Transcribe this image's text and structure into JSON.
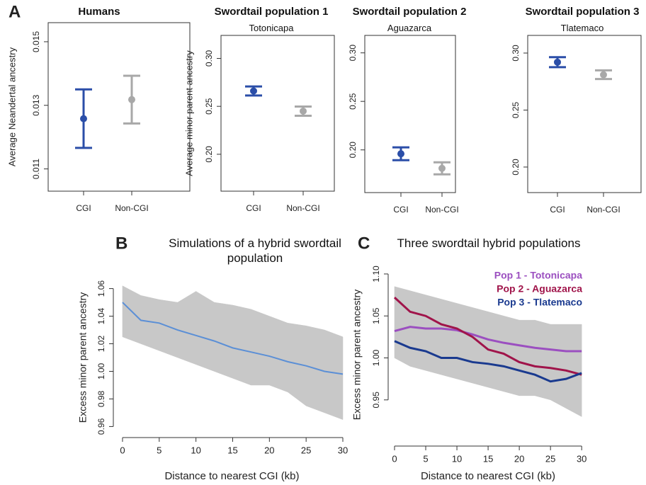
{
  "chart_data": [
    {
      "type": "errorbar",
      "panel_label": "A",
      "title": "Humans",
      "ylabel": "Average Neandertal ancestry",
      "categories": [
        "CGI",
        "Non-CGI"
      ],
      "values": [
        0.01258,
        0.01318
      ],
      "errors": [
        0.00092,
        0.00075
      ],
      "colors": [
        "#2b4ea8",
        "#a8a8a8"
      ],
      "ylim": [
        0.0103,
        0.0156
      ],
      "yticks": [
        0.011,
        0.013,
        0.015
      ]
    },
    {
      "type": "errorbar",
      "title": "Swordtail population 1",
      "subtitle": "Totonicapa",
      "ylabel": "Average minor parent ancestry",
      "categories": [
        "CGI",
        "Non-CGI"
      ],
      "values": [
        0.266,
        0.245
      ],
      "errors": [
        0.0047,
        0.0048
      ],
      "colors": [
        "#2b4ea8",
        "#a8a8a8"
      ],
      "ylim": [
        0.1615,
        0.324
      ],
      "yticks": [
        {
          "value": 0.2,
          "label": "0.20"
        },
        0.25,
        {
          "value": 0.3,
          "label": "0.30"
        }
      ]
    },
    {
      "type": "errorbar",
      "title": "Swordtail population 2",
      "subtitle": "Aguazarca",
      "categories": [
        "CGI",
        "Non-CGI"
      ],
      "values": [
        0.196,
        0.181
      ],
      "errors": [
        0.0066,
        0.0062
      ],
      "colors": [
        "#2b4ea8",
        "#a8a8a8"
      ],
      "ylim": [
        0.156,
        0.318
      ],
      "yticks": [
        {
          "value": 0.2,
          "label": "0.20"
        },
        0.25,
        {
          "value": 0.3,
          "label": "0.30"
        }
      ]
    },
    {
      "type": "errorbar",
      "title": "Swordtail population 3",
      "subtitle": "Tlatemaco",
      "categories": [
        "CGI",
        "Non-CGI"
      ],
      "values": [
        0.292,
        0.281
      ],
      "errors": [
        0.0044,
        0.0038
      ],
      "colors": [
        "#2b4ea8",
        "#a8a8a8"
      ],
      "ylim": [
        0.1776,
        0.3155
      ],
      "yticks": [
        {
          "value": 0.2,
          "label": "0.20"
        },
        0.25,
        {
          "value": 0.3,
          "label": "0.30"
        }
      ]
    },
    {
      "type": "line",
      "panel_label": "B",
      "title": "Simulations of a hybrid swordtail population",
      "xlabel": "Distance to nearest CGI (kb)",
      "ylabel": "Excess minor parent ancestry",
      "x": [
        0,
        2.5,
        5,
        7.5,
        10,
        12.5,
        15,
        17.5,
        20,
        22.5,
        25,
        27.5,
        30
      ],
      "band": {
        "color": "#c8c8c8",
        "lower": [
          1.025,
          1.02,
          1.015,
          1.01,
          1.005,
          1.0,
          0.995,
          0.99,
          0.99,
          0.985,
          0.975,
          0.97,
          0.965
        ],
        "upper": [
          1.062,
          1.055,
          1.052,
          1.05,
          1.058,
          1.05,
          1.048,
          1.045,
          1.04,
          1.035,
          1.033,
          1.03,
          1.025
        ]
      },
      "series": [
        {
          "color": "#5b8fd6",
          "values": [
            1.05,
            1.037,
            1.035,
            1.03,
            1.026,
            1.022,
            1.017,
            1.014,
            1.011,
            1.007,
            1.004,
            1.0,
            0.998
          ]
        }
      ],
      "xlim": [
        -1.25,
        31.06
      ],
      "xticks": [
        0,
        5,
        10,
        15,
        20,
        25,
        30
      ],
      "ylim": [
        0.952,
        1.068
      ],
      "yticks": [
        0.96,
        0.98,
        {
          "value": 1.0,
          "label": "1.00"
        },
        1.02,
        1.04,
        1.06
      ]
    },
    {
      "type": "line",
      "panel_label": "C",
      "title": "Three swordtail hybrid populations",
      "xlabel": "Distance to nearest CGI (kb)",
      "ylabel": "Excess minor parent ancestry",
      "x": [
        0,
        2.5,
        5,
        7.5,
        10,
        12.5,
        15,
        17.5,
        20,
        22.5,
        25,
        27.5,
        30
      ],
      "band": {
        "color": "#c8c8c8",
        "lower": [
          1.0,
          0.99,
          0.985,
          0.98,
          0.975,
          0.97,
          0.965,
          0.96,
          0.955,
          0.955,
          0.95,
          0.94,
          0.93
        ],
        "upper": [
          1.085,
          1.08,
          1.075,
          1.07,
          1.065,
          1.06,
          1.055,
          1.05,
          1.045,
          1.045,
          1.04,
          1.04,
          1.04
        ]
      },
      "series": [
        {
          "name": "Pop 1 - Totonicapa",
          "color": "#9b4fc0",
          "values": [
            1.032,
            1.037,
            1.035,
            1.035,
            1.033,
            1.028,
            1.022,
            1.018,
            1.015,
            1.012,
            1.01,
            1.008,
            1.008
          ]
        },
        {
          "name": "Pop 2 - Aguazarca",
          "color": "#a0144a",
          "values": [
            1.072,
            1.055,
            1.05,
            1.04,
            1.035,
            1.025,
            1.01,
            1.005,
            0.995,
            0.99,
            0.988,
            0.985,
            0.98
          ]
        },
        {
          "name": "Pop 3 - Tlatemaco",
          "color": "#1a3a8f",
          "values": [
            1.02,
            1.012,
            1.008,
            1.0,
            1.0,
            0.995,
            0.993,
            0.99,
            0.985,
            0.98,
            0.972,
            0.975,
            0.982
          ]
        }
      ],
      "legend": "top-right",
      "xlim": [
        -1.02,
        31.0
      ],
      "xticks": [
        0,
        5,
        10,
        15,
        20,
        25,
        30
      ],
      "ylim": [
        0.895,
        1.1126
      ],
      "yticks": [
        0.95,
        {
          "value": 1.0,
          "label": "1.00"
        },
        1.05,
        {
          "value": 1.1,
          "label": "1.10"
        }
      ]
    }
  ]
}
